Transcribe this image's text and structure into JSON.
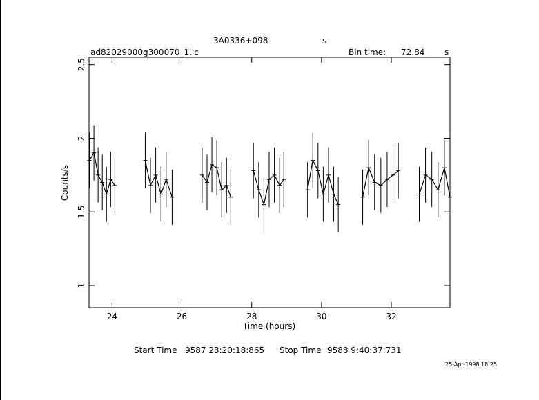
{
  "header": {
    "source": "3A0336+098",
    "source_unit": "s",
    "file": "ad82029000g300070_1.lc",
    "bin_label": "Bin time:",
    "bin_value": "72.84",
    "bin_unit": "s"
  },
  "footer": {
    "start_label": "Start Time",
    "start_value": "9587  23:20:18:865",
    "stop_label": "Stop Time",
    "stop_value": "9588  9:40:37:731",
    "date_stamp": "25-Apr-1998 18:25"
  },
  "chart_data": {
    "type": "line",
    "xlabel": "Time (hours)",
    "ylabel": "Counts/s",
    "xlim": [
      23.34,
      33.68
    ],
    "ylim": [
      0.85,
      2.55
    ],
    "xticks": [
      24,
      26,
      28,
      30,
      32
    ],
    "yticks": [
      1,
      1.5,
      2,
      2.5
    ],
    "series": [
      {
        "name": "",
        "segments": [
          {
            "x": [
              23.35,
              23.48,
              23.6,
              23.72,
              23.84,
              23.96,
              24.08
            ],
            "y": [
              1.85,
              1.9,
              1.75,
              1.7,
              1.62,
              1.72,
              1.68
            ]
          },
          {
            "x": [
              24.95,
              25.1,
              25.25,
              25.4,
              25.55,
              25.72
            ],
            "y": [
              1.85,
              1.68,
              1.75,
              1.62,
              1.72,
              1.6
            ]
          },
          {
            "x": [
              26.58,
              26.72,
              26.86,
              27.0,
              27.14,
              27.28,
              27.4
            ],
            "y": [
              1.75,
              1.7,
              1.82,
              1.8,
              1.65,
              1.68,
              1.6
            ]
          },
          {
            "x": [
              28.05,
              28.2,
              28.35,
              28.5,
              28.65,
              28.8,
              28.92
            ],
            "y": [
              1.78,
              1.65,
              1.55,
              1.72,
              1.75,
              1.68,
              1.72
            ]
          },
          {
            "x": [
              29.6,
              29.75,
              29.9,
              30.05,
              30.2,
              30.35,
              30.48
            ],
            "y": [
              1.65,
              1.85,
              1.78,
              1.62,
              1.75,
              1.62,
              1.55
            ]
          },
          {
            "x": [
              31.18,
              31.35,
              31.52,
              31.7,
              31.88,
              32.05,
              32.2
            ],
            "y": [
              1.6,
              1.8,
              1.7,
              1.68,
              1.72,
              1.75,
              1.78
            ]
          },
          {
            "x": [
              32.8,
              32.98,
              33.16,
              33.34,
              33.52,
              33.68
            ],
            "y": [
              1.62,
              1.75,
              1.72,
              1.65,
              1.8,
              1.6
            ]
          }
        ]
      }
    ]
  }
}
